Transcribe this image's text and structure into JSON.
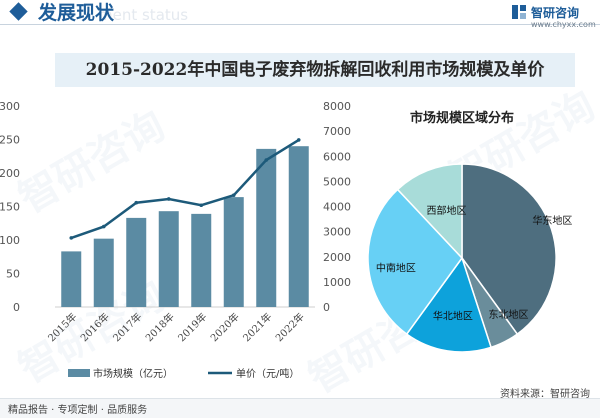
{
  "header": {
    "section_title": "发展现状",
    "section_subtitle": "ment status",
    "brand_name": "智研咨询",
    "brand_url": "www.chyxx.com"
  },
  "watermark_text": "智研咨询",
  "footer": {
    "left_text": "精品报告 · 专项定制 · 品质服务",
    "source_text": "资料来源：智研咨询"
  },
  "colors": {
    "accent": "#1e5d99",
    "bar": "#5b8ba3",
    "line": "#1d5a7a",
    "title_band": "#e6f0f7"
  },
  "chart_data": [
    {
      "type": "bar",
      "title": "2015-2022年中国电子废弃物拆解回收利用市场规模及单价",
      "categories": [
        "2015年",
        "2016年",
        "2017年",
        "2018年",
        "2019年",
        "2020年",
        "2021年",
        "2022年"
      ],
      "left_axis": {
        "ylim": [
          0,
          300
        ],
        "ticks": [
          0,
          50,
          100,
          150,
          200,
          250,
          300
        ]
      },
      "right_axis": {
        "ylim": [
          0,
          8000
        ],
        "ticks": [
          0,
          1000,
          2000,
          3000,
          4000,
          5000,
          6000,
          7000,
          8000
        ]
      },
      "series": [
        {
          "name": "市场规模（亿元）",
          "type": "bar",
          "axis": "left",
          "values": [
            83,
            102,
            133,
            143,
            139,
            164,
            236,
            240
          ]
        },
        {
          "name": "单价（元/吨）",
          "type": "line",
          "axis": "right",
          "values": [
            2750,
            3200,
            4150,
            4300,
            4050,
            4450,
            5850,
            6650
          ]
        }
      ],
      "legend_position": "bottom"
    },
    {
      "type": "pie",
      "title": "市场规模区域分布",
      "labels": [
        "华东地区",
        "东北地区",
        "华北地区",
        "中南地区",
        "西部地区"
      ],
      "values": [
        40,
        5,
        15,
        28,
        12
      ],
      "colors": [
        "#4e6e7f",
        "#6a8d9b",
        "#0da2db",
        "#67d0f5",
        "#a8dcd9"
      ]
    }
  ]
}
